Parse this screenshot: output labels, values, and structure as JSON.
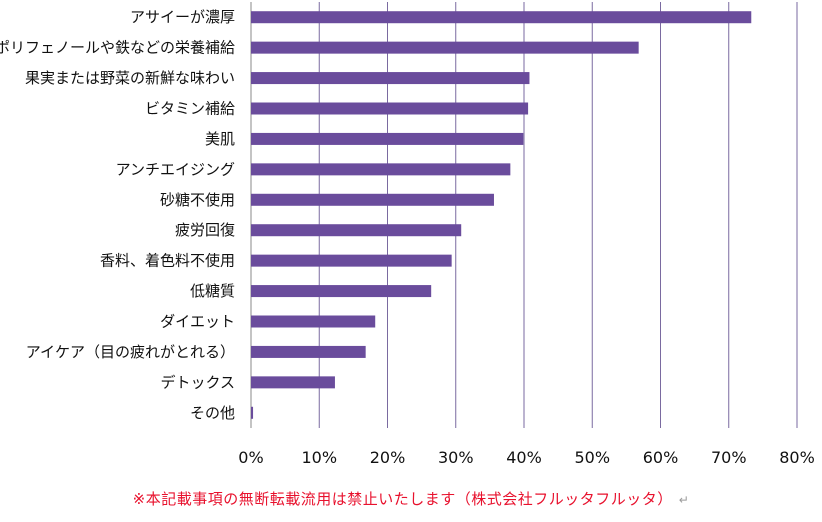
{
  "chart_data": {
    "type": "bar",
    "orientation": "horizontal",
    "categories": [
      "アサイーが濃厚",
      "ポリフェノールや鉄などの栄養補給",
      "果実または野菜の新鮮な味わい",
      "ビタミン補給",
      "美肌",
      "アンチエイジング",
      "砂糖不使用",
      "疲労回復",
      "香料、着色料不使用",
      "低糖質",
      "ダイエット",
      "アイケア（目の疲れがとれる）",
      "デトックス",
      "その他"
    ],
    "values": [
      73.3,
      56.8,
      40.8,
      40.6,
      39.9,
      38.0,
      35.6,
      30.8,
      29.4,
      26.4,
      18.2,
      16.8,
      12.3,
      0.3
    ],
    "xlim": [
      0,
      80
    ],
    "xticks": [
      "0%",
      "10%",
      "20%",
      "30%",
      "40%",
      "50%",
      "60%",
      "70%",
      "80%"
    ],
    "grid": "vertical",
    "bar_color": "#6a4c9c",
    "grid_color": "#7a6aa0",
    "title": "",
    "xlabel": "",
    "ylabel": ""
  },
  "footer": {
    "note": "※本記載事項の無断転載流用は禁止いたします（株式会社フルッタフルッタ）",
    "return_mark": "↵",
    "note_color": "#e8112d"
  }
}
